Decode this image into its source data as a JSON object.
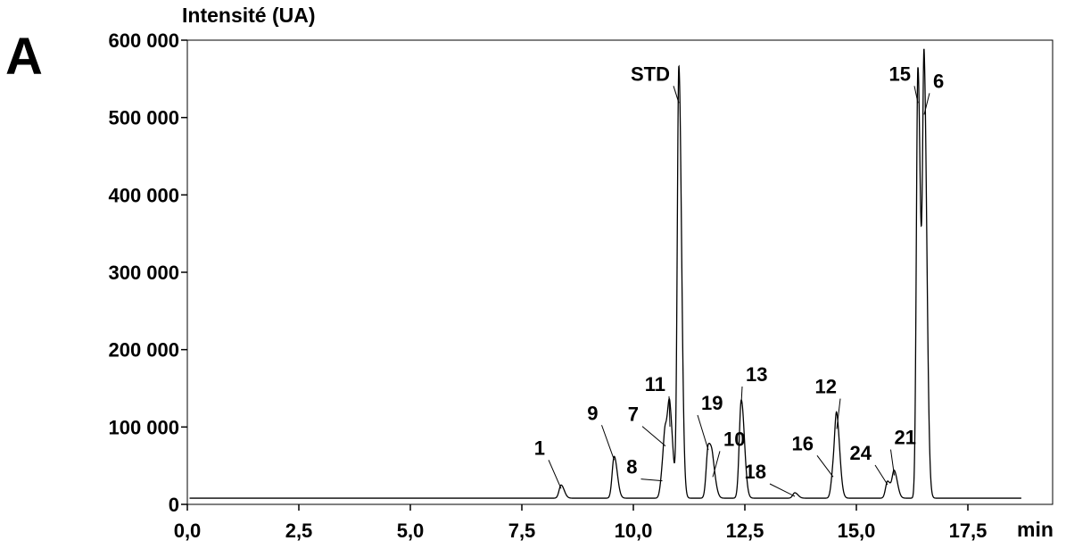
{
  "panel_label": "A",
  "chart_data": {
    "type": "line",
    "ylabel": "Intensité (UA)",
    "xlabel": "min",
    "xlim": [
      0,
      19.4
    ],
    "ylim": [
      0,
      600000
    ],
    "x_ticks": [
      {
        "value": 0,
        "label": "0,0"
      },
      {
        "value": 2.5,
        "label": "2,5"
      },
      {
        "value": 5,
        "label": "5,0"
      },
      {
        "value": 7.5,
        "label": "7,5"
      },
      {
        "value": 10,
        "label": "10,0"
      },
      {
        "value": 12.5,
        "label": "12,5"
      },
      {
        "value": 15,
        "label": "15,0"
      },
      {
        "value": 17.5,
        "label": "17,5"
      }
    ],
    "y_ticks": [
      {
        "value": 0,
        "label": "0"
      },
      {
        "value": 100000,
        "label": "100 000"
      },
      {
        "value": 200000,
        "label": "200 000"
      },
      {
        "value": 300000,
        "label": "300 000"
      },
      {
        "value": 400000,
        "label": "400 000"
      },
      {
        "value": 500000,
        "label": "500 000"
      },
      {
        "value": 600000,
        "label": "600 000"
      }
    ],
    "grid": false,
    "baseline": 8000,
    "peaks": [
      {
        "label": "1",
        "rt": 8.38,
        "height": 25000
      },
      {
        "label": "9",
        "rt": 9.57,
        "height": 62000
      },
      {
        "label": "8",
        "rt": 10.65,
        "height": 35000
      },
      {
        "label": "7",
        "rt": 10.72,
        "height": 80000
      },
      {
        "label": "11",
        "rt": 10.82,
        "height": 105000
      },
      {
        "label": "STD",
        "rt": 11.02,
        "height": 565000
      },
      {
        "label": "19",
        "rt": 11.68,
        "height": 75000
      },
      {
        "label": "10",
        "rt": 11.78,
        "height": 40000
      },
      {
        "label": "13",
        "rt": 12.42,
        "height": 135000
      },
      {
        "label": "18",
        "rt": 13.62,
        "height": 15000
      },
      {
        "label": "16",
        "rt": 14.48,
        "height": 40000
      },
      {
        "label": "12",
        "rt": 14.56,
        "height": 102000
      },
      {
        "label": "24",
        "rt": 15.7,
        "height": 30000
      },
      {
        "label": "21",
        "rt": 15.85,
        "height": 42000
      },
      {
        "label": "15",
        "rt": 16.38,
        "height": 565000
      },
      {
        "label": "6",
        "rt": 16.52,
        "height": 550000
      }
    ]
  }
}
